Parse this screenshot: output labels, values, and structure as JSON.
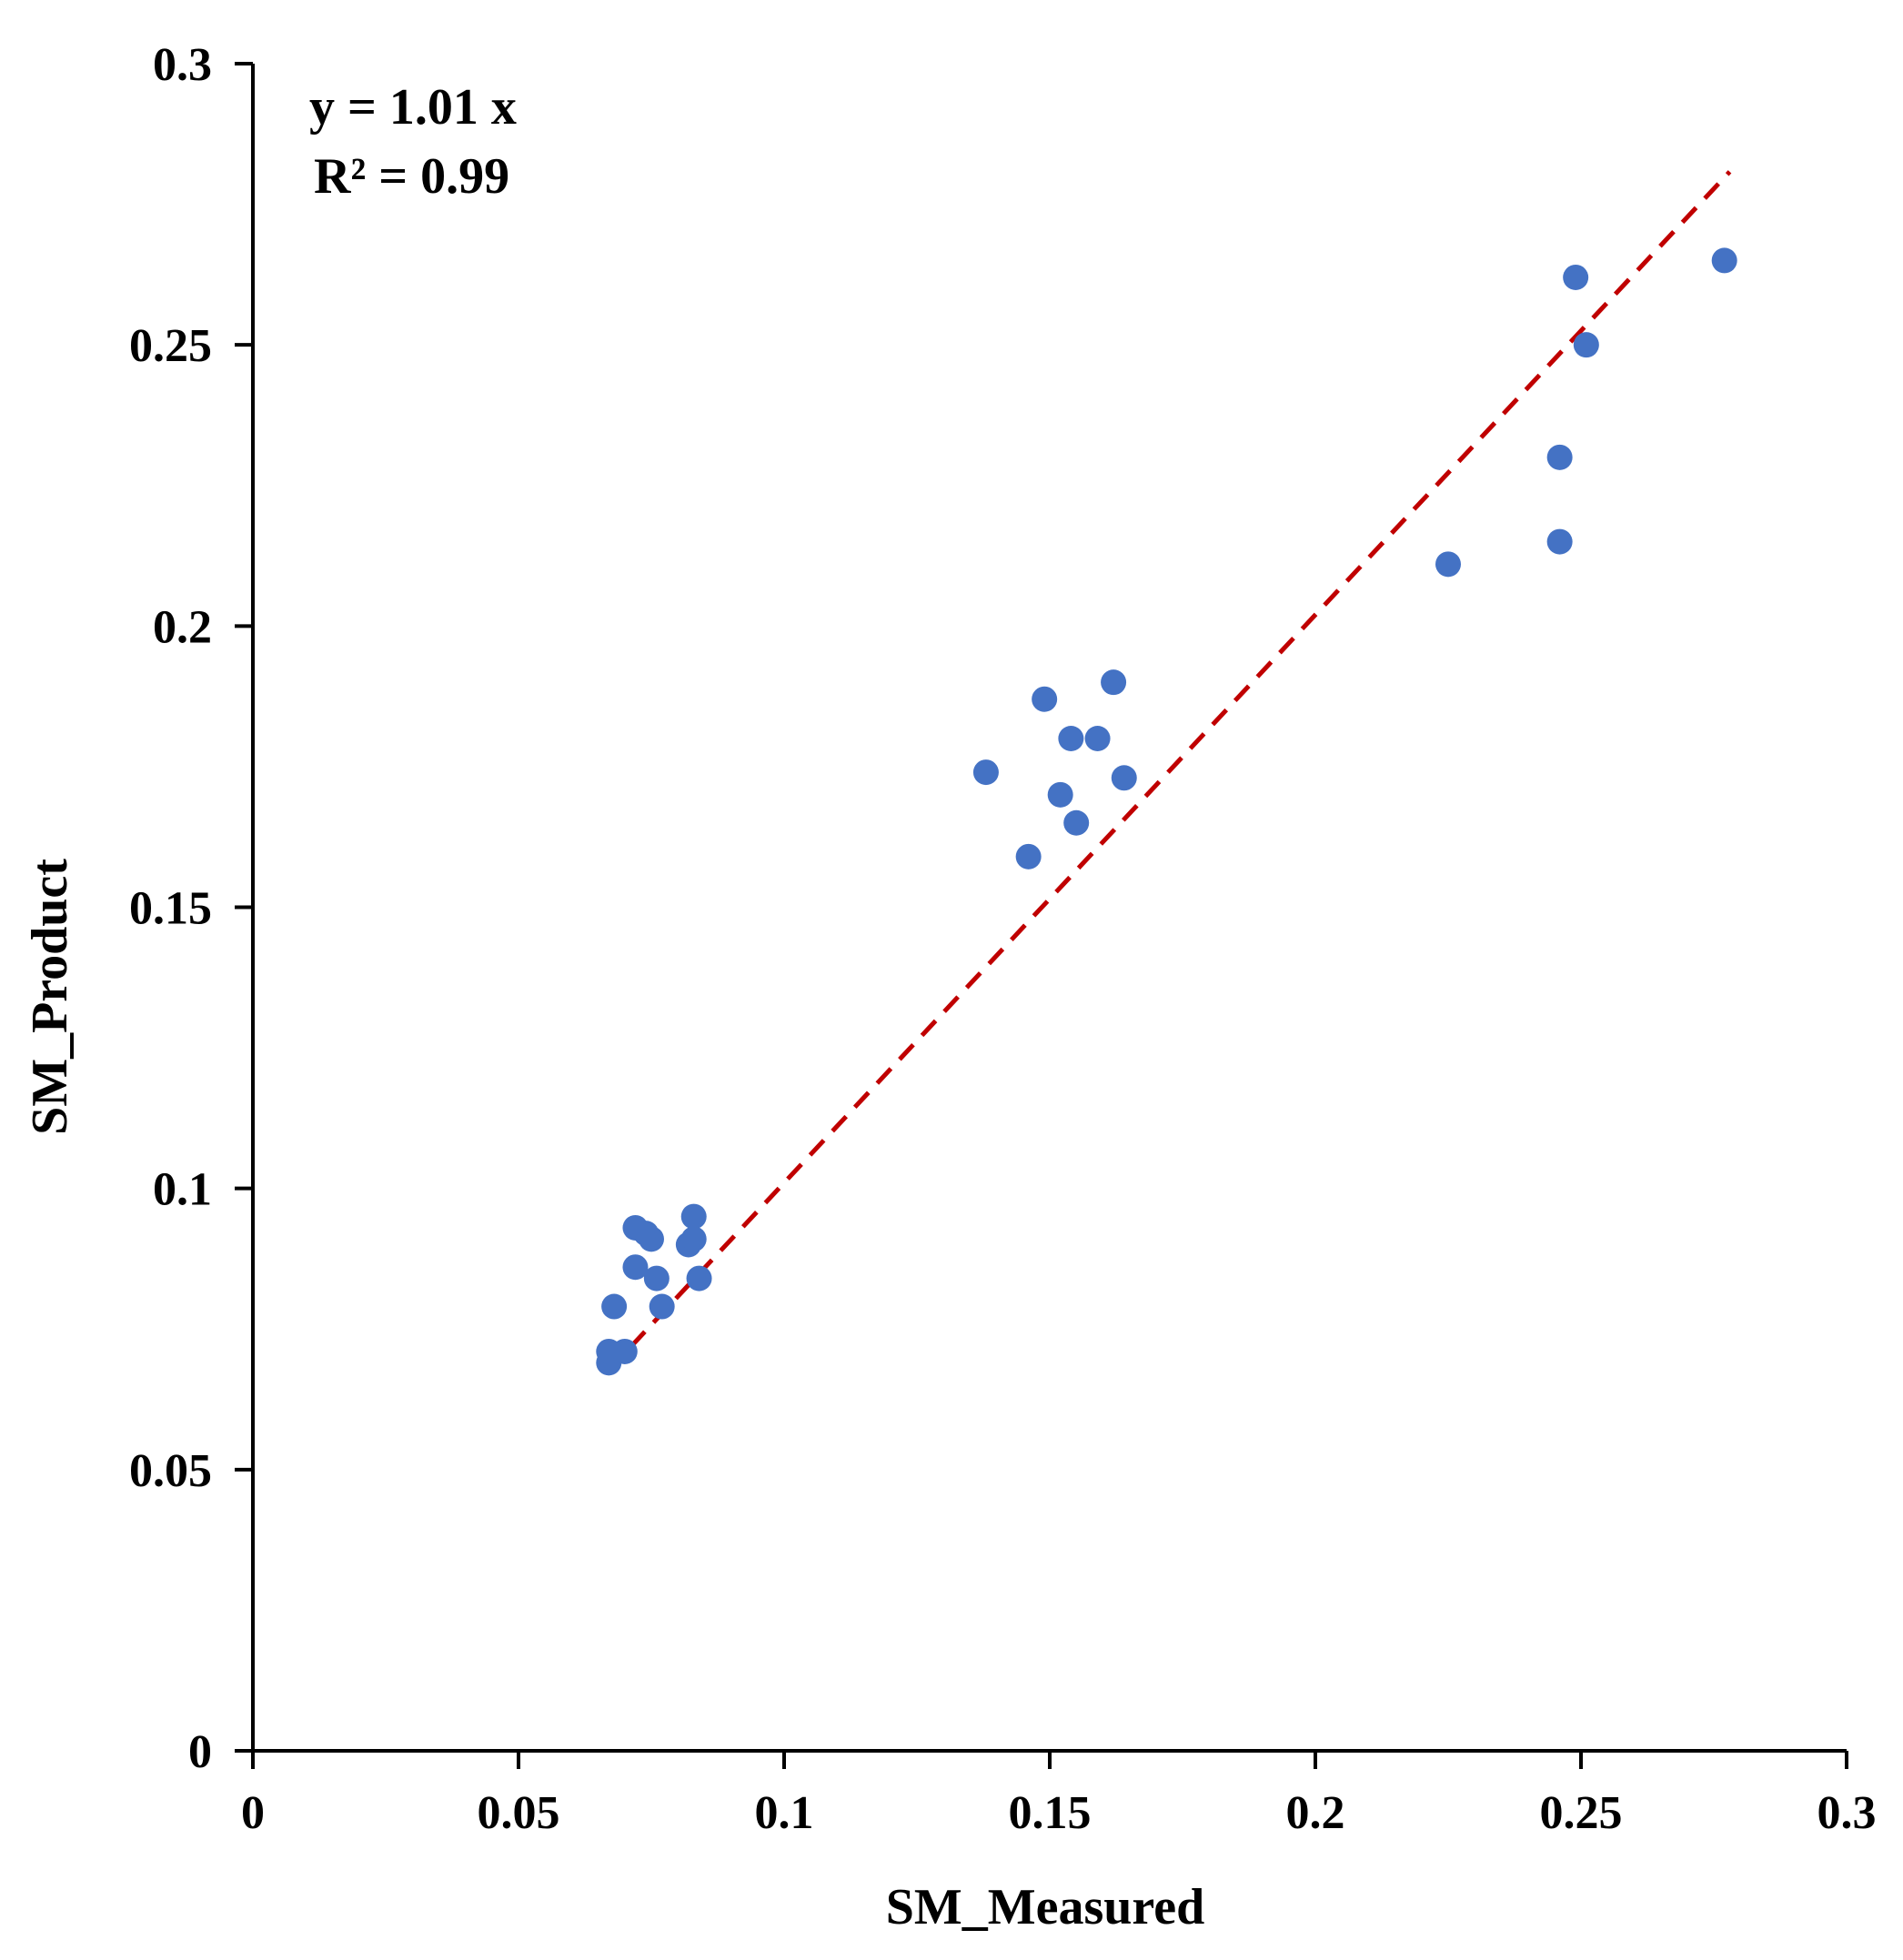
{
  "chart_data": {
    "type": "scatter",
    "title": "",
    "xlabel": "SM_Measured",
    "ylabel": "SM_Product",
    "xlim": [
      0,
      0.3
    ],
    "ylim": [
      0,
      0.3
    ],
    "x_ticks": [
      0,
      0.05,
      0.1,
      0.15,
      0.2,
      0.25,
      0.3
    ],
    "y_ticks": [
      0,
      0.05,
      0.1,
      0.15,
      0.2,
      0.25,
      0.3
    ],
    "x_tick_labels": [
      "0",
      "0.05",
      "0.1",
      "0.15",
      "0.2",
      "0.25",
      "0.3"
    ],
    "y_tick_labels": [
      "0",
      "0.05",
      "0.1",
      "0.15",
      "0.2",
      "0.25",
      "0.3"
    ],
    "grid": false,
    "colors": {
      "points": "#4472C4",
      "trendline": "#C00000",
      "axis": "#000000"
    },
    "annotations": [
      "y = 1.01 x",
      "R² = 0.99"
    ],
    "trendline": {
      "slope": 1.01,
      "intercept": 0,
      "x_range": [
        0.067,
        0.278
      ],
      "style": "dashed"
    },
    "series": [
      {
        "name": "SM",
        "x": [
          0.067,
          0.067,
          0.07,
          0.068,
          0.072,
          0.072,
          0.074,
          0.075,
          0.076,
          0.077,
          0.082,
          0.083,
          0.083,
          0.084,
          0.138,
          0.146,
          0.149,
          0.152,
          0.154,
          0.155,
          0.159,
          0.162,
          0.164,
          0.225,
          0.246,
          0.246,
          0.249,
          0.251,
          0.277
        ],
        "y": [
          0.069,
          0.071,
          0.071,
          0.079,
          0.086,
          0.093,
          0.092,
          0.091,
          0.084,
          0.079,
          0.09,
          0.091,
          0.095,
          0.084,
          0.174,
          0.159,
          0.187,
          0.17,
          0.18,
          0.165,
          0.18,
          0.19,
          0.173,
          0.211,
          0.23,
          0.215,
          0.262,
          0.25,
          0.265
        ]
      }
    ]
  }
}
